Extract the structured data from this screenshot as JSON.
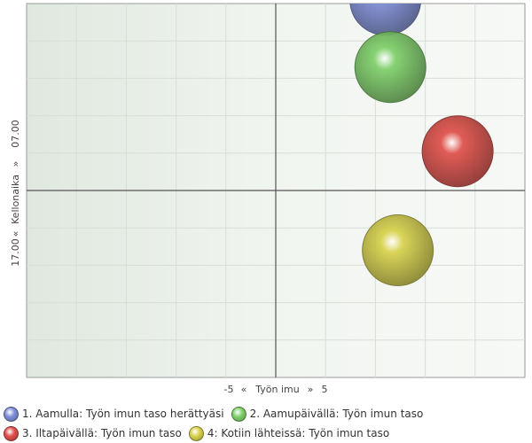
{
  "chart_data": {
    "type": "bubble",
    "x_axis": {
      "min_label": "-5",
      "left_arrow": "«",
      "title": "Työn imu",
      "right_arrow": "»",
      "max_label": "5",
      "range": [
        -10,
        10
      ]
    },
    "y_axis": {
      "min_label": "17.00",
      "left_arrow": "«",
      "title": "Kellonaika",
      "right_arrow": "»",
      "max_label": "07.00",
      "range": [
        -10,
        10
      ]
    },
    "grid": true,
    "legend_position": "bottom",
    "series": [
      {
        "name": "1. Aamulla: Työn imun taso herättyäsi",
        "color": "#7f8fd8",
        "x": 4.4,
        "y": 10.2,
        "size": 1
      },
      {
        "name": "2. Aamupäivällä: Työn imun taso",
        "color": "#7fd06a",
        "x": 4.6,
        "y": 6.6,
        "size": 1
      },
      {
        "name": "3. Iltapäivällä: Työn imun taso",
        "color": "#e0504a",
        "x": 7.3,
        "y": 2.1,
        "size": 1
      },
      {
        "name": "4: Kotiin lähteissä: Työn imun taso",
        "color": "#d8d24c",
        "x": 4.9,
        "y": -3.2,
        "size": 1
      }
    ]
  }
}
